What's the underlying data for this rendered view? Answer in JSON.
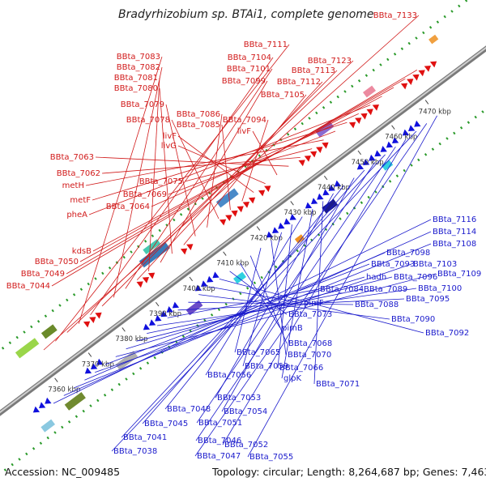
{
  "header": {
    "title": "Bradyrhizobium sp. BTAi1, complete genome"
  },
  "footer": {
    "accession": "Accession: NC_009485",
    "summary": "Topology: circular; Length: 8,264,687 bp; Genes: 7,463"
  },
  "colors": {
    "forward": "#e01010",
    "reverse": "#1010dd",
    "backbone": "#9a9a9a",
    "dots": "#2a9a2a",
    "label_forward": "#d11a1a",
    "label_reverse": "#1a1acc"
  },
  "ticks": [
    "7360 kbp",
    "7370 kbp",
    "7380 kbp",
    "7390 kbp",
    "7400 kbp",
    "7410 kbp",
    "7420 kbp",
    "7430 kbp",
    "7440 kbp",
    "7450 kbp",
    "7460 kbp",
    "7470 kbp"
  ],
  "forward_labels": [
    "BBta_7133",
    "BBta_7111",
    "BBta_7123",
    "BBta_7083",
    "BBta_7104",
    "BBta_7113",
    "BBta_7082",
    "BBta_7101",
    "BBta_7112",
    "BBta_7081",
    "BBta_7099",
    "BBta_7080",
    "BBta_7105",
    "BBta_7079",
    "BBta_7086",
    "BBta_7078",
    "BBta_7085",
    "BBta_7094",
    "livF",
    "livG",
    "livF",
    "BBta_7063",
    "BBta_7062",
    "BBta_7075",
    "metH",
    "BBta_7069",
    "metF",
    "BBta_7064",
    "pheA",
    "kdsB",
    "BBta_7050",
    "BBta_7049",
    "BBta_7044"
  ],
  "reverse_labels": [
    "BBta_7116",
    "BBta_7114",
    "BBta_7108",
    "BBta_7098",
    "BBta_7103",
    "BBta_7093",
    "BBta_7109",
    "hadh",
    "BBta_7096",
    "BBta_7089",
    "BBta_7100",
    "BBta_7084",
    "BBta_7095",
    "BBta_7088",
    "BBta_7090",
    "pimF",
    "BBta_7092",
    "BBta_7073",
    "pimB",
    "BBta_7068",
    "BBta_7065",
    "BBta_7070",
    "BBta_7059",
    "BBta_7066",
    "BBta_7056",
    "glpK",
    "BBta_7071",
    "BBta_7053",
    "BBta_7048",
    "BBta_7054",
    "BBta_7045",
    "BBta_7051",
    "BBta_7041",
    "BBta_7046",
    "BBta_7052",
    "BBta_7038",
    "BBta_7047",
    "BBta_7055"
  ]
}
